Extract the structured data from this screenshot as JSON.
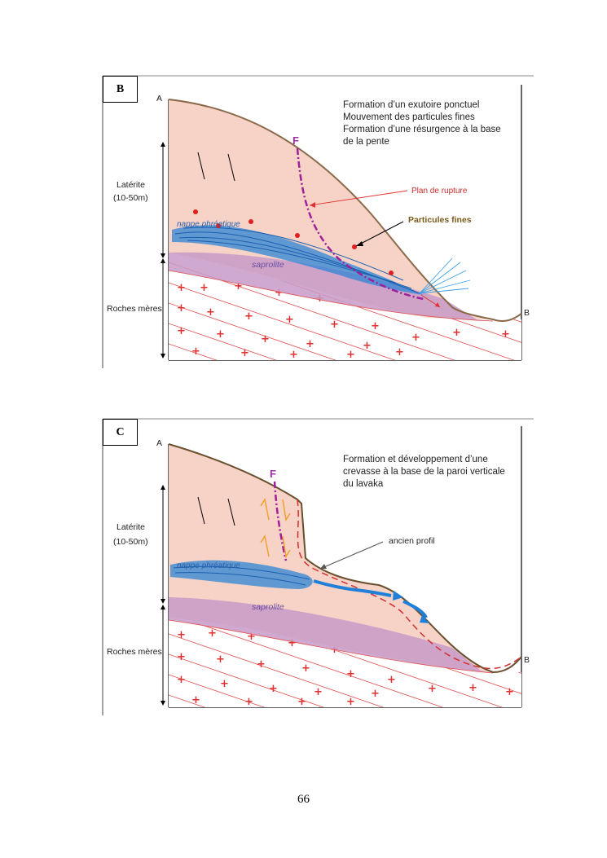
{
  "figure_b": {
    "panel_label": "B",
    "point_a": "A",
    "point_b": "B",
    "description_lines": [
      "Formation d’un exutoire ponctuel",
      "Mouvement des particules fines",
      "Formation d’une résurgence à la base",
      "de la pente"
    ],
    "laterite_label": "Latérite",
    "laterite_depth": "(10-50m)",
    "bedrock_label": "Roches mères",
    "fault_label": "F",
    "rupture_label": "Plan de rupture",
    "particles_label": "Particules fines",
    "water_table_label": "nappe phréatique",
    "saprolite_label": "saprolite"
  },
  "figure_c": {
    "panel_label": "C",
    "point_a": "A",
    "point_b": "B",
    "description_lines": [
      "Formation et développement d’une",
      "crevasse à la base de la paroi verticale",
      "du lavaka"
    ],
    "laterite_label": "Latérite",
    "laterite_depth": "(10-50m)",
    "bedrock_label": "Roches mères",
    "fault_label": "F",
    "old_profile_label": "ancien profil",
    "water_table_label": "nappe phréatique",
    "saprolite_label": "saprolite"
  },
  "page_number": "66",
  "colors": {
    "laterite": "#f6d3c6",
    "saprolite": "#c89ac8",
    "bedrock_lines": "#e05050",
    "water": "#2e86d6",
    "fault": "#a0209a",
    "surface": "#8a6a4a"
  }
}
